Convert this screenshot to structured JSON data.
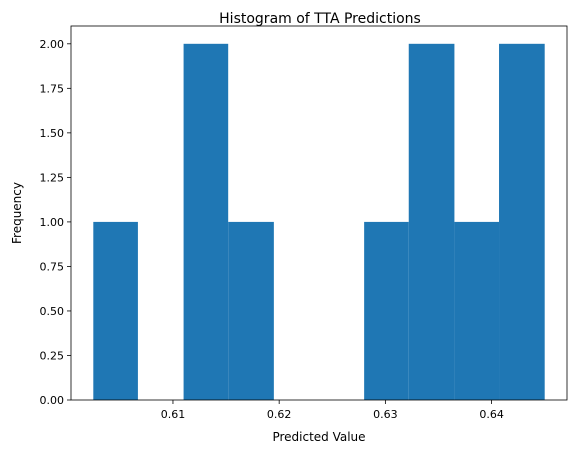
{
  "chart_data": {
    "type": "bar",
    "title": "Histogram of TTA Predictions",
    "xlabel": "Predicted Value",
    "ylabel": "Frequency",
    "bins": [
      {
        "start": 0.6025,
        "end": 0.6067,
        "count": 1
      },
      {
        "start": 0.6067,
        "end": 0.611,
        "count": 0
      },
      {
        "start": 0.611,
        "end": 0.6152,
        "count": 2
      },
      {
        "start": 0.6152,
        "end": 0.6195,
        "count": 1
      },
      {
        "start": 0.6195,
        "end": 0.6237,
        "count": 0
      },
      {
        "start": 0.6237,
        "end": 0.628,
        "count": 0
      },
      {
        "start": 0.628,
        "end": 0.6322,
        "count": 1
      },
      {
        "start": 0.6322,
        "end": 0.6365,
        "count": 2
      },
      {
        "start": 0.6365,
        "end": 0.6407,
        "count": 1
      },
      {
        "start": 0.6407,
        "end": 0.645,
        "count": 2
      }
    ],
    "xlim": [
      0.6004,
      0.6471
    ],
    "ylim": [
      0,
      2.1
    ],
    "xticks": [
      0.61,
      0.62,
      0.63,
      0.64
    ],
    "xtick_labels": [
      "0.61",
      "0.62",
      "0.63",
      "0.64"
    ],
    "yticks": [
      0,
      0.25,
      0.5,
      0.75,
      1.0,
      1.25,
      1.5,
      1.75,
      2.0
    ],
    "ytick_labels": [
      "0.00",
      "0.25",
      "0.50",
      "0.75",
      "1.00",
      "1.25",
      "1.50",
      "1.75",
      "2.00"
    ],
    "bar_color": "#1f77b4",
    "grid": false,
    "legend": "none"
  }
}
